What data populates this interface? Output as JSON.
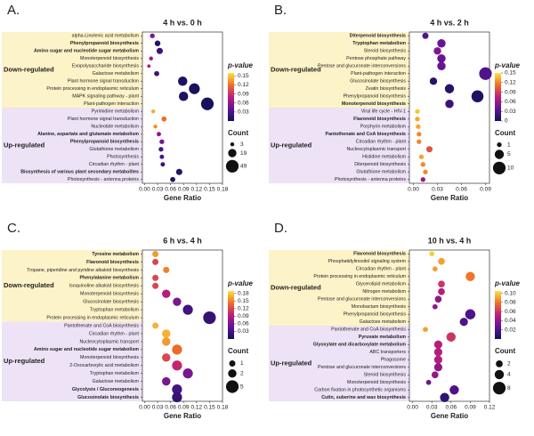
{
  "chart_data": [
    {
      "type": "bubble",
      "panel": "A.",
      "title": "4 h vs. 0 h",
      "xlabel": "Gene Ratio",
      "xlim": [
        -0.005,
        0.18
      ],
      "xticks": [
        {
          "value": 0,
          "label": "0.00"
        },
        0.03,
        0.06,
        0.09,
        0.12,
        0.15,
        0.18
      ],
      "color_label": "p-value",
      "clim": [
        0,
        0.16
      ],
      "cticks": [
        0.15,
        0.12,
        0.09,
        0.06,
        0.03
      ],
      "size_label": "Count",
      "size_ticks": [
        3,
        19,
        49
      ],
      "groups": [
        {
          "name": "Down-regulated",
          "color": "#e58a00",
          "band_color": "#fdf3c8",
          "categories": [
            "alpha-Linolenic acid metabolism",
            "Phenylpropanoid biosynthesis",
            "Amino sugar and nucleotide sugar metabolism",
            "Monoterpenoid biosynthesis",
            "Exopolysaccharide biosynthesis",
            "Galactose metabolism",
            "Plant hormone signal transduction",
            "Protein processing in endoplasmic reticulum",
            "MAPK signaling pathway - plant",
            "Plant-pathogen interaction"
          ],
          "bold": [
            false,
            true,
            true,
            false,
            false,
            false,
            false,
            false,
            false,
            false
          ],
          "x": [
            0.018,
            0.03,
            0.035,
            0.015,
            0.01,
            0.028,
            0.088,
            0.115,
            0.09,
            0.145
          ],
          "p_value": [
            0.05,
            0.01,
            0.02,
            0.06,
            0.07,
            0.02,
            0.005,
            0.002,
            0.005,
            0.001
          ],
          "count": [
            5,
            8,
            10,
            3,
            2,
            6,
            25,
            35,
            25,
            49
          ]
        },
        {
          "name": "Up-regulated",
          "color": "#8a3fbf",
          "band_color": "#eee2f6",
          "categories": [
            "Pyrimidine metabolism",
            "Plant hormone signal transduction",
            "Nucleotide metabolism",
            "Alanine, aspartate and glutamate metabolism",
            "Phenylpropanoid biosynthesis",
            "Glutathione metabolism",
            "Photosynthesis",
            "Circadian rhythm - plant",
            "Biosynthesis of various plant secondary metabolites",
            "Photosynthesis - antenna proteins"
          ],
          "bold": [
            false,
            false,
            false,
            true,
            true,
            false,
            false,
            false,
            true,
            false
          ],
          "x": [
            0.02,
            0.045,
            0.025,
            0.033,
            0.04,
            0.038,
            0.04,
            0.042,
            0.08,
            0.065
          ],
          "p_value": [
            0.14,
            0.12,
            0.13,
            0.06,
            0.05,
            0.03,
            0.03,
            0.02,
            0.01,
            0.01
          ],
          "count": [
            3,
            6,
            3,
            4,
            5,
            5,
            4,
            4,
            10,
            6
          ]
        }
      ]
    },
    {
      "type": "bubble",
      "panel": "B.",
      "title": "4 h vs. 2 h",
      "xlabel": "Gene Ratio",
      "xlim": [
        -0.005,
        0.095
      ],
      "xticks": [
        {
          "value": 0,
          "label": "0.00"
        },
        0.03,
        0.06,
        0.09
      ],
      "color_label": "p-value",
      "clim": [
        0,
        0.15
      ],
      "cticks": [
        0.15,
        0.12,
        0.09,
        0.06,
        0.03,
        0
      ],
      "size_label": "Count",
      "size_ticks": [
        1,
        5,
        10
      ],
      "groups": [
        {
          "name": "Down-regulated",
          "color": "#e58a00",
          "band_color": "#fdf3c8",
          "categories": [
            "Diterpenoid biosynthesis",
            "Tryptophan metabolism",
            "Steroid biosynthesis",
            "Pentose phosphate pathway",
            "Pentose and glucuronate interconversions",
            "Plant-pathogen interaction",
            "Glucosinolate biosynthesis",
            "Zeatin biosynthesis",
            "Phenylpropanoid biosynthesis",
            "Monoterpenoid biosynthesis"
          ],
          "bold": [
            true,
            true,
            false,
            false,
            false,
            false,
            false,
            false,
            false,
            true
          ],
          "x": [
            0.015,
            0.035,
            0.03,
            0.035,
            0.035,
            0.09,
            0.025,
            0.045,
            0.08,
            0.045
          ],
          "p_value": [
            0.03,
            0.04,
            0.05,
            0.04,
            0.04,
            0.03,
            0.01,
            0.01,
            0.005,
            0.02
          ],
          "count": [
            2,
            4,
            3,
            4,
            4,
            10,
            3,
            5,
            9,
            4
          ]
        },
        {
          "name": "Up-regulated",
          "color": "#8a3fbf",
          "band_color": "#eee2f6",
          "categories": [
            "Viral life cycle - HIV-1",
            "Flavonoid biosynthesis",
            "Porphyrin metabolism",
            "Pantothenate and CoA biosynthesis",
            "Circadian rhythm - plant",
            "Nucleocytoplasmic transport",
            "Histidine metabolism",
            "Diterpenoid biosynthesis",
            "Glutathione metabolism",
            "Photosynthesis - antenna proteins"
          ],
          "bold": [
            false,
            true,
            false,
            true,
            false,
            false,
            false,
            false,
            false,
            false
          ],
          "x": [
            0.005,
            0.005,
            0.006,
            0.007,
            0.007,
            0.02,
            0.01,
            0.012,
            0.015,
            0.012
          ],
          "p_value": [
            0.14,
            0.13,
            0.13,
            0.12,
            0.12,
            0.1,
            0.13,
            0.12,
            0.12,
            0.06
          ],
          "count": [
            1,
            1,
            1,
            1,
            1,
            2,
            1,
            1,
            1,
            1
          ]
        }
      ]
    },
    {
      "type": "bubble",
      "panel": "C.",
      "title": "6 h vs. 4 h",
      "xlabel": "Gene Ratio",
      "xlim": [
        -0.005,
        0.18
      ],
      "xticks": [
        {
          "value": 0,
          "label": "0.00"
        },
        0.03,
        0.06,
        0.09,
        0.12,
        0.15,
        0.18
      ],
      "color_label": "p-value",
      "clim": [
        0,
        0.19
      ],
      "cticks": [
        0.18,
        0.15,
        0.12,
        0.09,
        0.06,
        0.03
      ],
      "size_label": "Count",
      "size_ticks": [
        1,
        2,
        5
      ],
      "groups": [
        {
          "name": "Down-regulated",
          "color": "#e58a00",
          "band_color": "#fdf3c8",
          "categories": [
            "Tyrosine metabolism",
            "Flavonoid biosynthesis",
            "Tropane, piperidine and pyridine alkaloid biosynthesis",
            "Phenylalanine metabolism",
            "Isoquinoline alkaloid biosynthesis",
            "Monoterpenoid biosynthesis",
            "Glucosinolate biosynthesis",
            "Tryptophan metabolism",
            "Protein processing in endoplasmic reticulum"
          ],
          "bold": [
            true,
            true,
            false,
            true,
            false,
            false,
            false,
            false,
            false
          ],
          "x": [
            0.025,
            0.025,
            0.05,
            0.025,
            0.025,
            0.05,
            0.075,
            0.1,
            0.15
          ],
          "p_value": [
            0.16,
            0.12,
            0.15,
            0.12,
            0.12,
            0.09,
            0.06,
            0.03,
            0.02
          ],
          "count": [
            1,
            1,
            1,
            1,
            1,
            2,
            2,
            3,
            5
          ]
        },
        {
          "name": "Up-regulated",
          "color": "#8a3fbf",
          "band_color": "#eee2f6",
          "categories": [
            "Pantothenate and CoA biosynthesis",
            "Circadian rhythm - plant",
            "Nucleocytoplasmic transport",
            "Amino sugar and nucleotide sugar metabolism",
            "Monoterpenoid biosynthesis",
            "2-Oxocarboxylic acid metabolism",
            "Tryptophan metabolism",
            "Galactose metabolism",
            "Glycolysis / Gluconeogenesis",
            "Glucosinolate biosynthesis"
          ],
          "bold": [
            false,
            false,
            false,
            true,
            false,
            false,
            false,
            false,
            true,
            true
          ],
          "x": [
            0.025,
            0.05,
            0.05,
            0.075,
            0.05,
            0.075,
            0.1,
            0.05,
            0.075,
            0.075
          ],
          "p_value": [
            0.17,
            0.17,
            0.16,
            0.14,
            0.12,
            0.1,
            0.06,
            0.06,
            0.03,
            0.02
          ],
          "count": [
            1,
            2,
            2,
            3,
            2,
            3,
            3,
            2,
            3,
            3
          ]
        }
      ]
    },
    {
      "type": "bubble",
      "panel": "D.",
      "title": "10 h vs. 4 h",
      "xlabel": "Gene Ratio",
      "xlim": [
        -0.005,
        0.12
      ],
      "xticks": [
        {
          "value": 0,
          "label": "0.00"
        },
        0.03,
        0.06,
        0.09,
        0.12
      ],
      "color_label": "p-value",
      "clim": [
        0,
        0.105
      ],
      "cticks": [
        {
          "value": 0.1,
          "label": "0.10"
        },
        0.08,
        0.06,
        0.04,
        0.02
      ],
      "size_label": "Count",
      "size_ticks": [
        2,
        4,
        8
      ],
      "groups": [
        {
          "name": "Down-regulated",
          "color": "#e58a00",
          "band_color": "#fdf3c8",
          "categories": [
            "Flavonoid biosynthesis",
            "Phosphatidylinositol signaling system",
            "Circadian rhythm - plant",
            "Protein processing in endoplasmic reticulum",
            "Glycerolipid metabolism",
            "Nitrogen metabolism",
            "Pentose and glucuronate interconversions",
            "Monobactam biosynthesis",
            "Phenylpropanoid biosynthesis",
            "Galactose metabolism"
          ],
          "bold": [
            true,
            false,
            false,
            false,
            false,
            false,
            false,
            false,
            false,
            false
          ],
          "x": [
            0.03,
            0.045,
            0.035,
            0.09,
            0.045,
            0.045,
            0.04,
            0.035,
            0.09,
            0.08
          ],
          "p_value": [
            0.1,
            0.09,
            0.09,
            0.08,
            0.06,
            0.05,
            0.04,
            0.04,
            0.02,
            0.02
          ],
          "count": [
            1,
            2,
            1,
            4,
            2,
            2,
            2,
            1,
            5,
            3
          ]
        },
        {
          "name": "Up-regulated",
          "color": "#8a3fbf",
          "band_color": "#eee2f6",
          "categories": [
            "Pantothenate and CoA biosynthesis",
            "Pyruvate metabolism",
            "Glyoxylate and dicarboxylate metabolism",
            "ABC transporters",
            "Phagosome",
            "Pentose and glucuronate interconversions",
            "Steroid biosynthesis",
            "Monoterpenoid biosynthesis",
            "Carbon fixation in photosynthetic organisms",
            "Cutin, suberine and wax biosynthesis"
          ],
          "bold": [
            false,
            true,
            true,
            false,
            false,
            false,
            false,
            false,
            false,
            true
          ],
          "x": [
            0.02,
            0.06,
            0.04,
            0.04,
            0.04,
            0.04,
            0.035,
            0.025,
            0.065,
            0.05
          ],
          "p_value": [
            0.09,
            0.06,
            0.05,
            0.05,
            0.05,
            0.04,
            0.04,
            0.03,
            0.02,
            0.01
          ],
          "count": [
            1,
            4,
            3,
            3,
            3,
            3,
            2,
            1,
            4,
            4
          ]
        }
      ]
    }
  ]
}
